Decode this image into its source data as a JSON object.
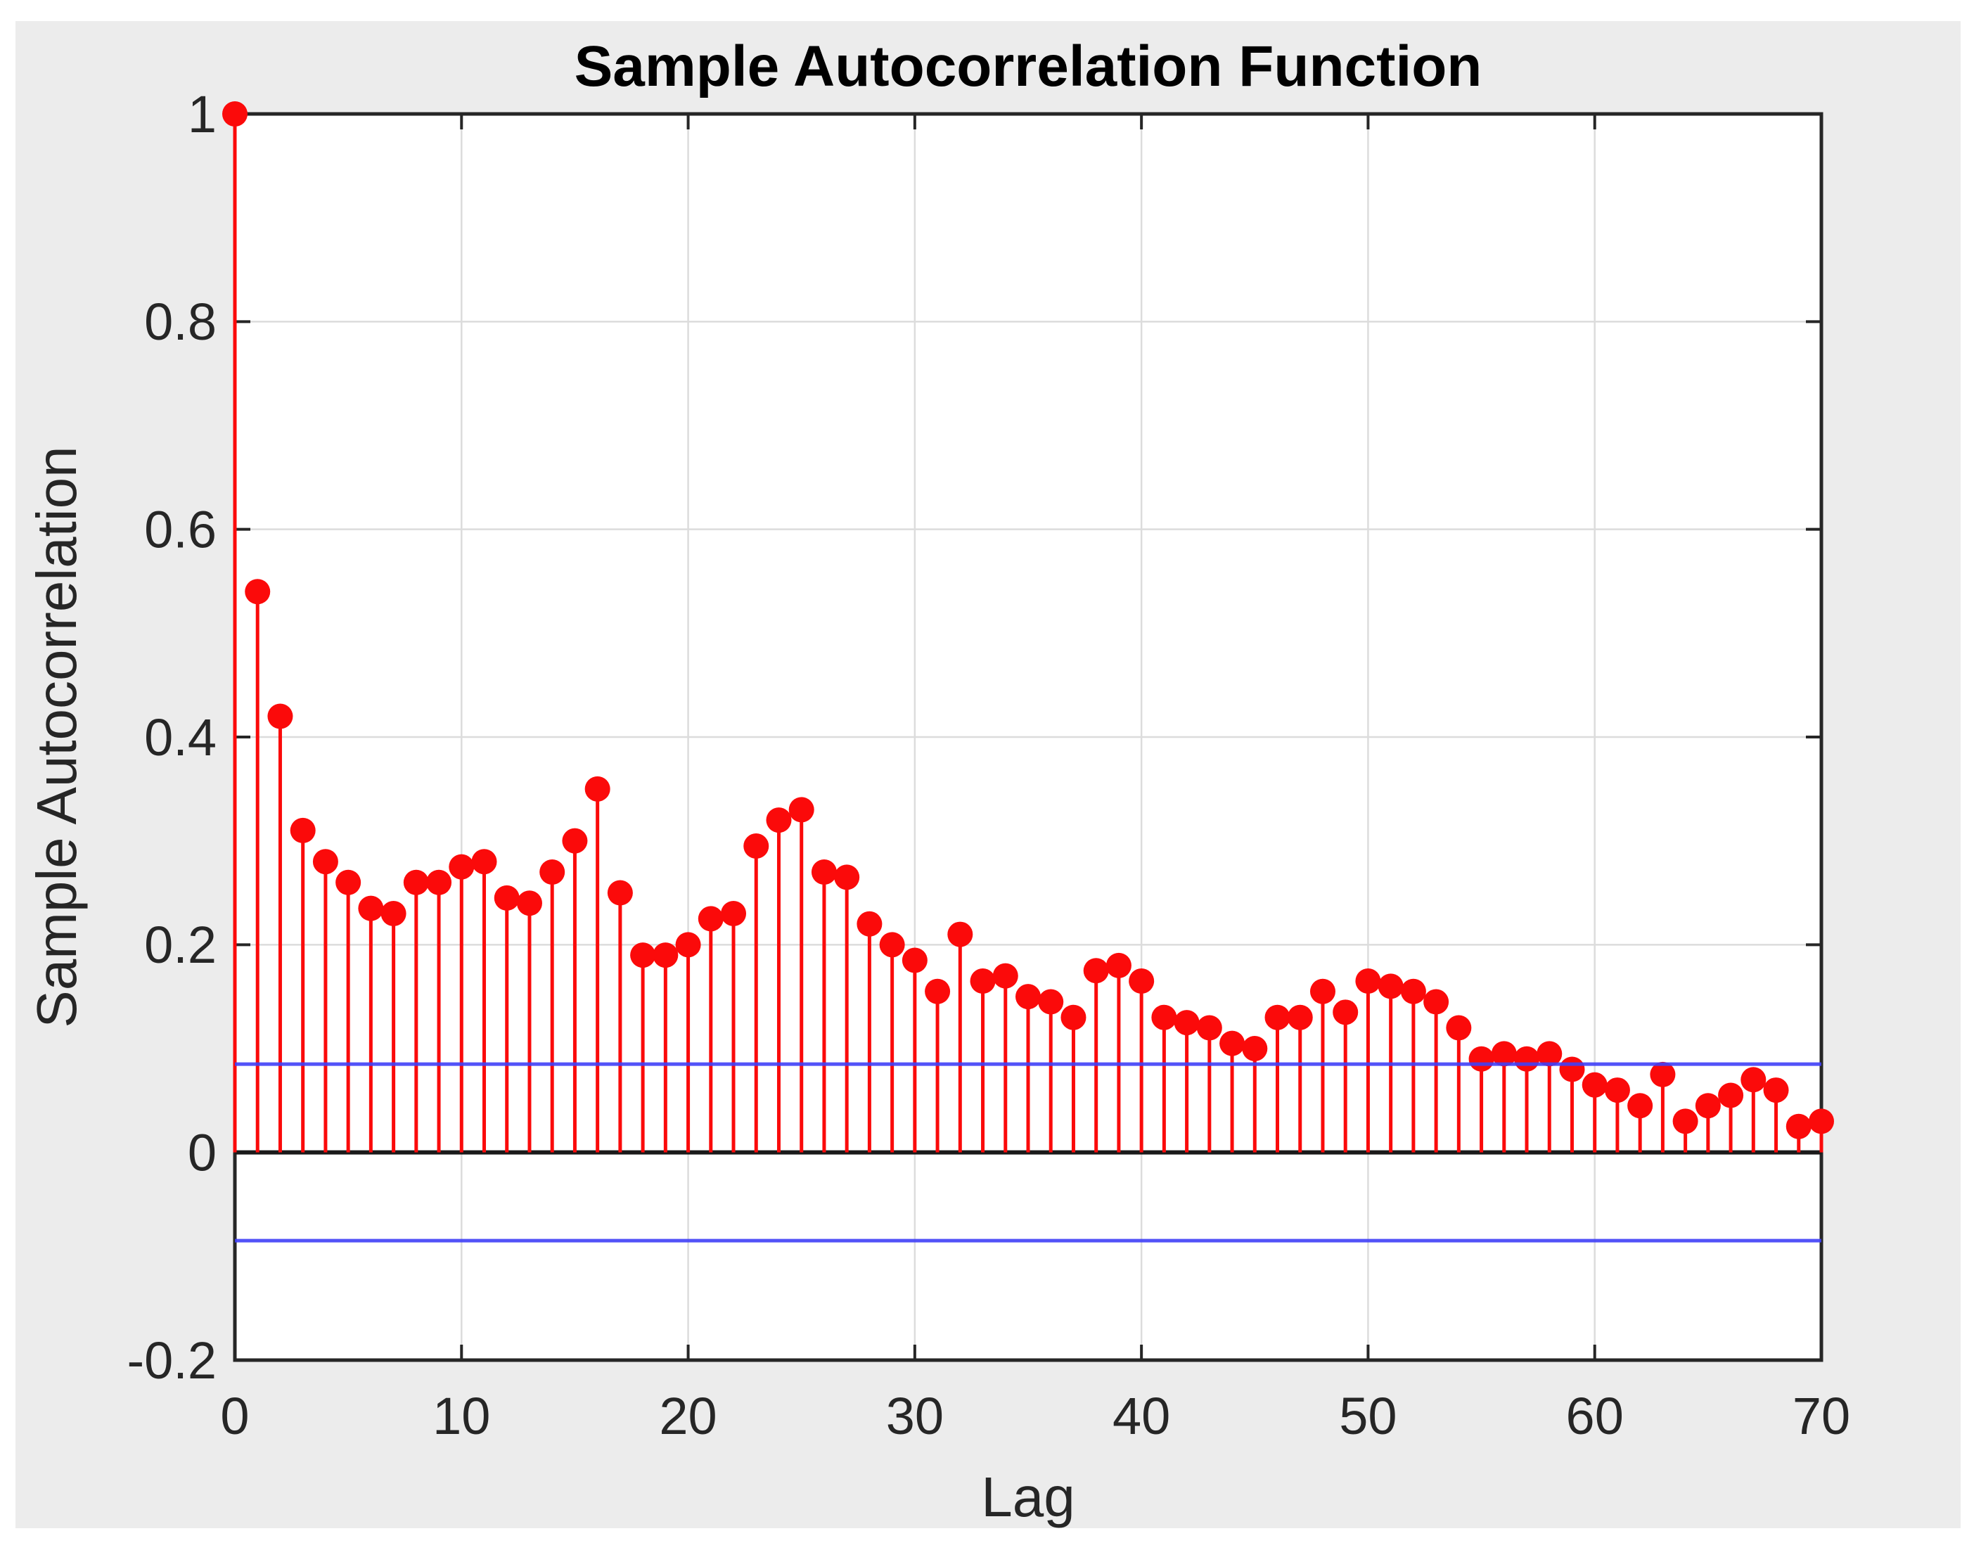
{
  "figure": {
    "title": "Sample Autocorrelation Function",
    "x_axis_label": "Lag",
    "y_axis_label": "Sample Autocorrelation"
  },
  "chart_data": {
    "type": "stem",
    "title": "Sample Autocorrelation Function",
    "xlabel": "Lag",
    "ylabel": "Sample Autocorrelation",
    "xlim": [
      0,
      70
    ],
    "ylim": [
      -0.2,
      1
    ],
    "xticks": [
      0,
      10,
      20,
      30,
      40,
      50,
      60,
      70
    ],
    "xtick_labels": [
      "0",
      "10",
      "20",
      "30",
      "40",
      "50",
      "60",
      "70"
    ],
    "yticks": [
      -0.2,
      0,
      0.2,
      0.4,
      0.6,
      0.8,
      1
    ],
    "ytick_labels": [
      "-0.2",
      "0",
      "0.2",
      "0.4",
      "0.6",
      "0.8",
      "1"
    ],
    "grid": true,
    "legend": null,
    "confidence_bounds": {
      "upper": 0.085,
      "lower": -0.085
    },
    "lags": [
      0,
      1,
      2,
      3,
      4,
      5,
      6,
      7,
      8,
      9,
      10,
      11,
      12,
      13,
      14,
      15,
      16,
      17,
      18,
      19,
      20,
      21,
      22,
      23,
      24,
      25,
      26,
      27,
      28,
      29,
      30,
      31,
      32,
      33,
      34,
      35,
      36,
      37,
      38,
      39,
      40,
      41,
      42,
      43,
      44,
      45,
      46,
      47,
      48,
      49,
      50,
      51,
      52,
      53,
      54,
      55,
      56,
      57,
      58,
      59,
      60,
      61,
      62,
      63,
      64,
      65,
      66,
      67,
      68,
      69,
      70
    ],
    "acf_values": [
      1.0,
      0.54,
      0.42,
      0.31,
      0.28,
      0.26,
      0.235,
      0.23,
      0.26,
      0.26,
      0.275,
      0.28,
      0.245,
      0.24,
      0.27,
      0.3,
      0.35,
      0.25,
      0.19,
      0.19,
      0.2,
      0.225,
      0.23,
      0.295,
      0.32,
      0.33,
      0.27,
      0.265,
      0.22,
      0.2,
      0.185,
      0.155,
      0.21,
      0.165,
      0.17,
      0.15,
      0.145,
      0.13,
      0.175,
      0.18,
      0.165,
      0.13,
      0.125,
      0.12,
      0.105,
      0.1,
      0.13,
      0.13,
      0.155,
      0.135,
      0.165,
      0.16,
      0.155,
      0.145,
      0.12,
      0.09,
      0.095,
      0.09,
      0.095,
      0.08,
      0.065,
      0.06,
      0.045,
      0.075,
      0.03,
      0.045,
      0.055,
      0.07,
      0.06,
      0.025,
      0.03
    ]
  },
  "style": {
    "page_bg": "#ffffff",
    "figure_bg": "#ececec",
    "plot_bg": "#ffffff",
    "grid_color": "#dcdcdc",
    "frame_color": "#262626",
    "tick_color": "#262626",
    "tick_label_color": "#262626",
    "title_color": "#000000",
    "axis_label_color": "#262626",
    "stem_color": "#fb0a0a",
    "marker_color": "#fb0a0a",
    "zero_line_color": "#1a1a1a",
    "bound_line_color": "#4040f8"
  }
}
